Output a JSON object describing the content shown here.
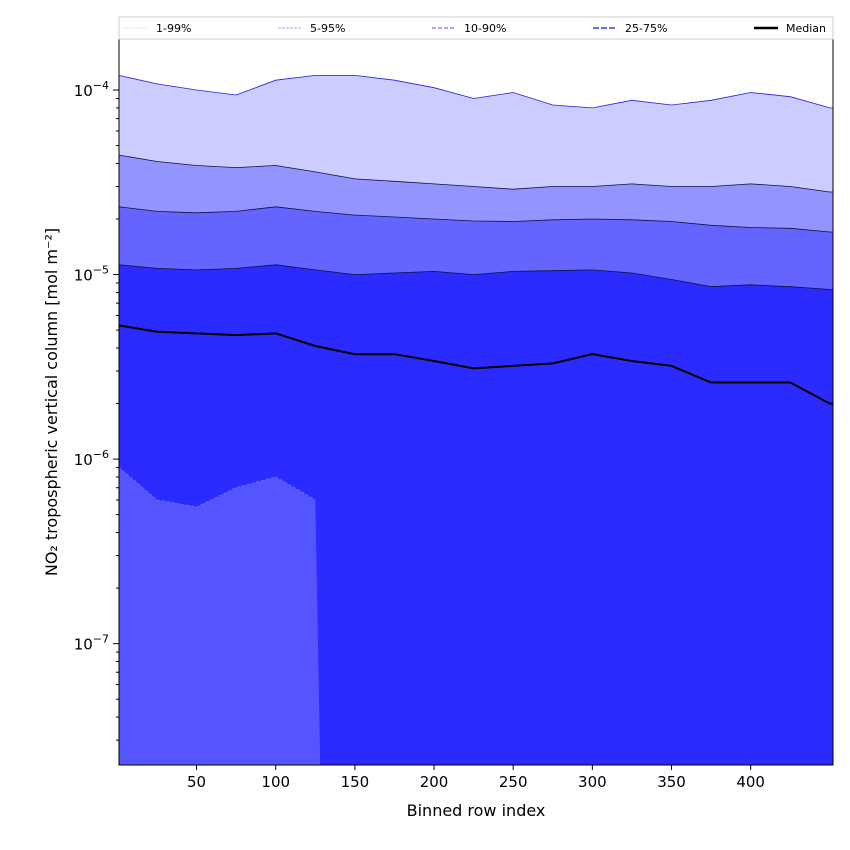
{
  "chart_data": {
    "type": "area",
    "title": "",
    "xlabel": "Binned row index",
    "ylabel": "NO₂ tropospheric vertical column [mol m⁻²]",
    "yscale": "log",
    "xlim": [
      1,
      452
    ],
    "ylim": [
      2.2e-08,
      0.000189
    ],
    "xticks": [
      50,
      100,
      150,
      200,
      250,
      300,
      350,
      400
    ],
    "yticks": [
      {
        "value": 1e-07,
        "base": "10",
        "exp": "−7"
      },
      {
        "value": 1e-06,
        "base": "10",
        "exp": "−6"
      },
      {
        "value": 1e-05,
        "base": "10",
        "exp": "−5"
      },
      {
        "value": 0.0001,
        "base": "10",
        "exp": "−4"
      }
    ],
    "legend": {
      "placement": "top",
      "entries": [
        "1-99%",
        "5-95%",
        "10-90%",
        "25-75%",
        "Median"
      ]
    },
    "x": [
      1,
      25,
      50,
      75,
      100,
      125,
      150,
      175,
      200,
      225,
      250,
      275,
      300,
      325,
      350,
      375,
      400,
      425,
      450
    ],
    "series": [
      {
        "name": "p99",
        "color": "#ccccff",
        "line": "#2020e0",
        "values": [
          0.00012,
          0.000108,
          0.0001,
          9.4e-05,
          0.000113,
          0.00012,
          0.00012,
          0.000113,
          0.000103,
          9e-05,
          9.7e-05,
          8.3e-05,
          8e-05,
          8.8e-05,
          8.3e-05,
          8.8e-05,
          9.7e-05,
          9.2e-05,
          8e-05
        ]
      },
      {
        "name": "p95",
        "color": "#9494ff",
        "line": "#101040",
        "values": [
          4.44e-05,
          4.1e-05,
          3.9e-05,
          3.8e-05,
          3.9e-05,
          3.6e-05,
          3.3e-05,
          3.2e-05,
          3.1e-05,
          3e-05,
          2.9e-05,
          3e-05,
          3e-05,
          3.1e-05,
          3e-05,
          3e-05,
          3.1e-05,
          3e-05,
          2.8e-05
        ]
      },
      {
        "name": "p90",
        "color": "#6464ff",
        "line": "#101040",
        "values": [
          2.33e-05,
          2.2e-05,
          2.16e-05,
          2.2e-05,
          2.33e-05,
          2.2e-05,
          2.1e-05,
          2.05e-05,
          2e-05,
          1.95e-05,
          1.94e-05,
          1.98e-05,
          2e-05,
          1.98e-05,
          1.94e-05,
          1.85e-05,
          1.8e-05,
          1.78e-05,
          1.7e-05
        ]
      },
      {
        "name": "p75",
        "color": "#2b2bff",
        "line": "#101040",
        "values": [
          1.13e-05,
          1.08e-05,
          1.06e-05,
          1.08e-05,
          1.13e-05,
          1.06e-05,
          1e-05,
          1.02e-05,
          1.04e-05,
          1e-05,
          1.04e-05,
          1.05e-05,
          1.06e-05,
          1.02e-05,
          9.4e-06,
          8.6e-06,
          8.8e-06,
          8.6e-06,
          8.3e-06
        ]
      },
      {
        "name": "Median",
        "color": "#000000",
        "line": "#000000",
        "values": [
          5.3e-06,
          4.9e-06,
          4.8e-06,
          4.7e-06,
          4.8e-06,
          4.1e-06,
          3.7e-06,
          3.7e-06,
          3.4e-06,
          3.1e-06,
          3.2e-06,
          3.3e-06,
          3.7e-06,
          3.4e-06,
          3.2e-06,
          2.6e-06,
          2.6e-06,
          2.6e-06,
          2e-06
        ]
      },
      {
        "name": "p1",
        "color": "#5555ff",
        "line": "#6a6aff",
        "values": [
          9e-07,
          6e-07,
          5.5e-07,
          7e-07,
          8e-07,
          6e-07,
          null,
          null,
          null,
          null,
          null,
          null,
          null,
          null,
          null,
          null,
          null,
          null,
          null
        ]
      }
    ]
  }
}
